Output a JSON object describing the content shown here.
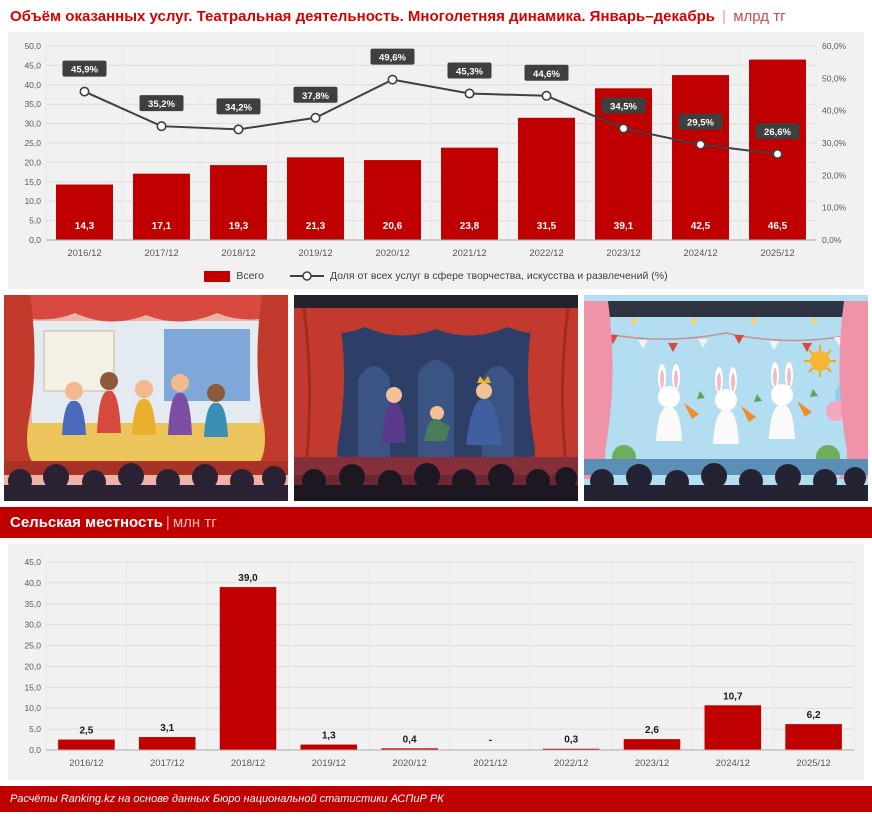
{
  "header": {
    "title": "Объём оказанных услуг. Театральная деятельность. Многолетняя динамика. Январь–декабрь",
    "separator": "|",
    "unit": "млрд тг"
  },
  "legend": {
    "bar_label": "Всего",
    "line_label": "Доля от всех услуг в сфере творчества, искусства и развлечений (%)"
  },
  "section_rural": {
    "title": "Сельская местность",
    "separator": "|",
    "unit": "млн тг"
  },
  "footer": {
    "text": "Расчёты Ranking.kz на основе данных Бюро национальной статистики АСПиР РК"
  },
  "colors": {
    "bar": "#c00000",
    "line": "#404040",
    "label_box": "#3f3f3f",
    "accent_red": "#c00000"
  },
  "chart_data": [
    {
      "type": "bar+line",
      "title": "Объём оказанных услуг. Театральная деятельность. Многолетняя динамика. Январь–декабрь",
      "unit": "млрд тг",
      "grid": true,
      "legend_position": "bottom",
      "categories": [
        "2016/12",
        "2017/12",
        "2018/12",
        "2019/12",
        "2020/12",
        "2021/12",
        "2022/12",
        "2023/12",
        "2024/12",
        "2025/12"
      ],
      "series": [
        {
          "name": "Всего",
          "type": "bar",
          "values": [
            14.3,
            17.1,
            19.3,
            21.3,
            20.6,
            23.8,
            31.5,
            39.1,
            42.5,
            46.5
          ],
          "labels": [
            "14,3",
            "17,1",
            "19,3",
            "21,3",
            "20,6",
            "23,8",
            "31,5",
            "39,1",
            "42,5",
            "46,5"
          ]
        },
        {
          "name": "Доля от всех услуг в сфере творчества, искусства и развлечений (%)",
          "type": "line",
          "values": [
            45.9,
            35.2,
            34.2,
            37.8,
            49.6,
            45.3,
            44.6,
            34.5,
            29.5,
            26.6
          ],
          "labels": [
            "45,9%",
            "35,2%",
            "34,2%",
            "37,8%",
            "49,6%",
            "45,3%",
            "44,6%",
            "34,5%",
            "29,5%",
            "26,6%"
          ]
        }
      ],
      "left_axis": {
        "min": 0,
        "max": 50,
        "ticks": [
          "0,0",
          "5,0",
          "10,0",
          "15,0",
          "20,0",
          "25,0",
          "30,0",
          "35,0",
          "40,0",
          "45,0",
          "50,0"
        ]
      },
      "right_axis": {
        "min": 0,
        "max": 60,
        "ticks": [
          "0,0%",
          "10,0%",
          "20,0%",
          "30,0%",
          "40,0%",
          "50,0%",
          "60,0%"
        ]
      }
    },
    {
      "type": "bar",
      "title": "Сельская местность",
      "unit": "млн тг",
      "grid": true,
      "categories": [
        "2016/12",
        "2017/12",
        "2018/12",
        "2019/12",
        "2020/12",
        "2021/12",
        "2022/12",
        "2023/12",
        "2024/12",
        "2025/12"
      ],
      "values": [
        2.5,
        3.1,
        39.0,
        1.3,
        0.4,
        null,
        0.3,
        2.6,
        10.7,
        6.2
      ],
      "labels": [
        "2,5",
        "3,1",
        "39,0",
        "1,3",
        "0,4",
        "-",
        "0,3",
        "2,6",
        "10,7",
        "6,2"
      ],
      "left_axis": {
        "min": 0,
        "max": 45,
        "ticks": [
          "0,0",
          "5,0",
          "10,0",
          "15,0",
          "20,0",
          "25,0",
          "30,0",
          "35,0",
          "40,0",
          "45,0"
        ]
      }
    }
  ]
}
